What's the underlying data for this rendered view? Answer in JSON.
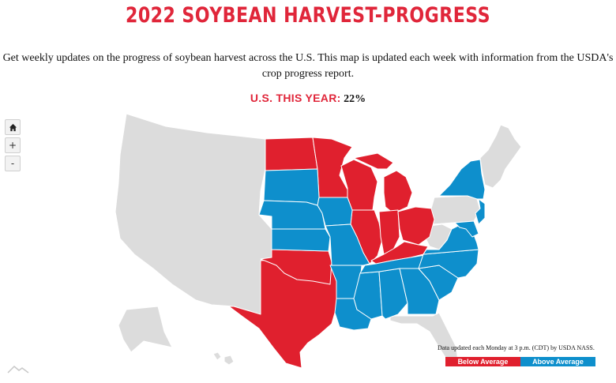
{
  "title": "2022 SOYBEAN HARVEST-PROGRESS",
  "subtitle_line1": "Get weekly updates on the progress of soybean harvest across the U.S. This map is updated each week with information from the USDA's",
  "subtitle_line2": "crop progress report.",
  "national": {
    "label": "U.S. THIS YEAR:",
    "value": "22%"
  },
  "controls": {
    "home_icon": "home-icon",
    "zoom_in": "+",
    "zoom_out": "-"
  },
  "footnote": "Data updated each Monday at 3 p.m. (CDT) by USDA NASS.",
  "legend": {
    "below": {
      "label": "Below Average",
      "color": "#e0202e"
    },
    "above": {
      "label": "Above Average",
      "color": "#0e8fcc"
    },
    "neutral_color": "#dcdcdc"
  },
  "states_below_average": [
    "North Dakota",
    "Minnesota",
    "Wisconsin",
    "Michigan",
    "Illinois",
    "Indiana",
    "Ohio",
    "Kentucky",
    "Oklahoma",
    "Texas"
  ],
  "states_above_average": [
    "South Dakota",
    "Nebraska",
    "Kansas",
    "Iowa",
    "Missouri",
    "Arkansas",
    "Louisiana",
    "Mississippi",
    "Tennessee",
    "Alabama",
    "Georgia",
    "South Carolina",
    "North Carolina",
    "Virginia",
    "Delaware",
    "Maryland",
    "New Jersey",
    "New York"
  ]
}
